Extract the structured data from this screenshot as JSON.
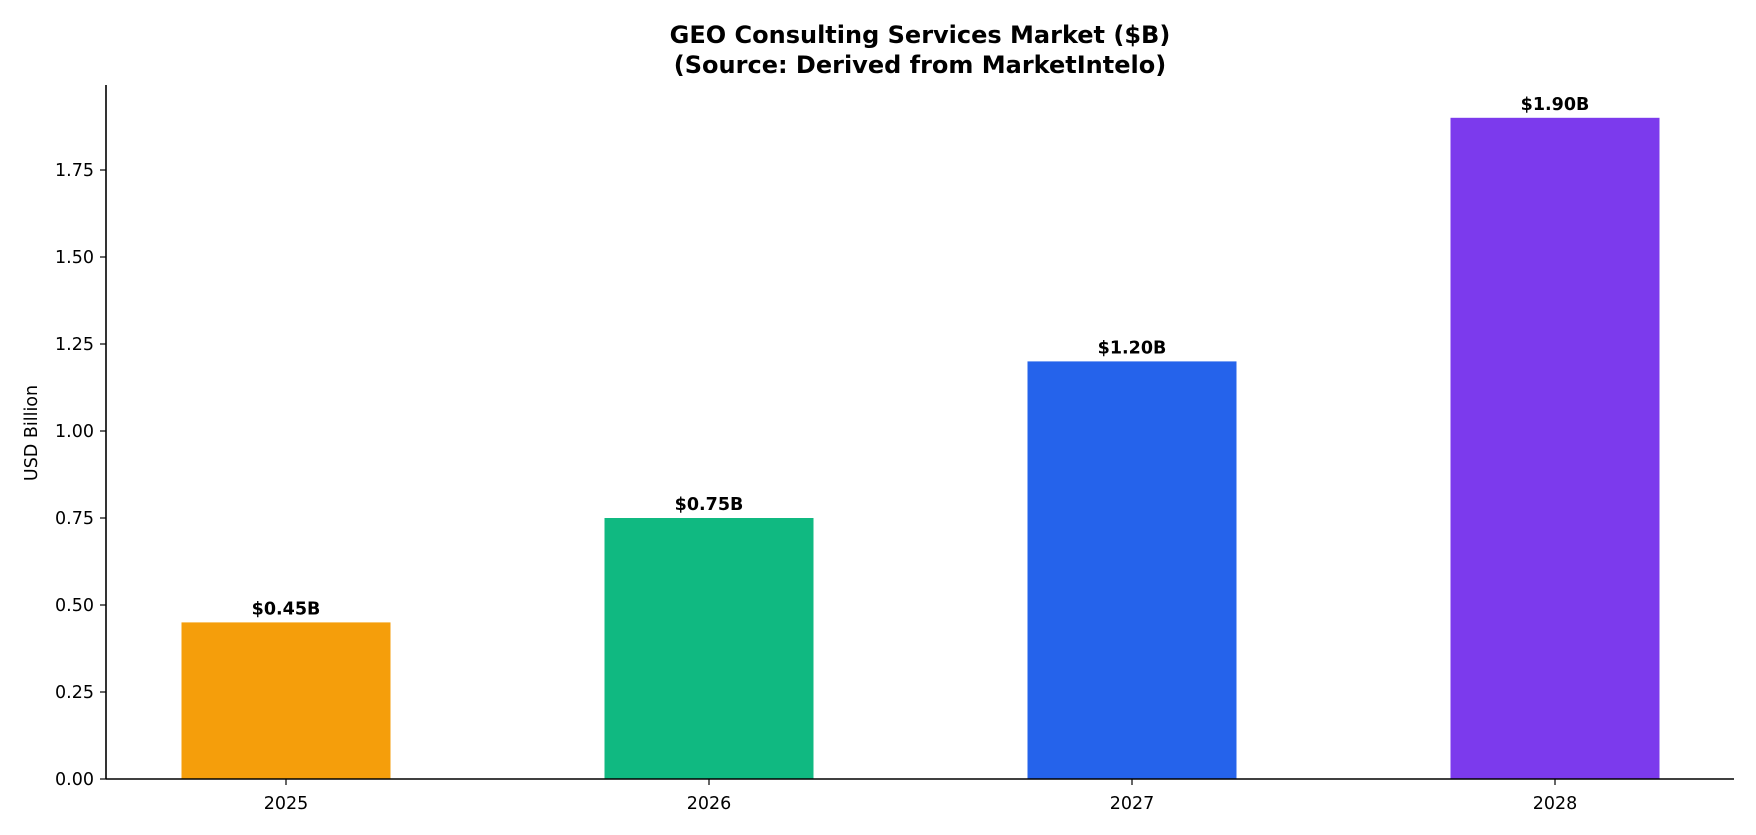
{
  "chart_data": {
    "type": "bar",
    "title": "GEO Consulting Services Market ($B)",
    "subtitle": "(Source: Derived from MarketIntelo)",
    "xlabel": "",
    "ylabel": "USD Billion",
    "categories": [
      "2025",
      "2026",
      "2027",
      "2028"
    ],
    "values": [
      0.45,
      0.75,
      1.2,
      1.9
    ],
    "data_labels": [
      "$0.45B",
      "$0.75B",
      "$1.20B",
      "$1.90B"
    ],
    "colors": [
      "#F59E0B",
      "#10B981",
      "#2563EB",
      "#7C3AED"
    ],
    "ylim": [
      0,
      2.0
    ],
    "yticks": [
      "0.00",
      "0.25",
      "0.50",
      "0.75",
      "1.00",
      "1.25",
      "1.50",
      "1.75"
    ],
    "grid": false,
    "legend": "none"
  }
}
